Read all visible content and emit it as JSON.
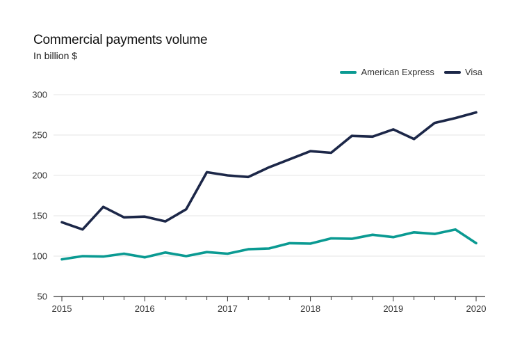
{
  "chart_data": {
    "type": "line",
    "title": "Commercial payments volume",
    "subtitle": "In billion $",
    "xlabel": "",
    "ylabel": "",
    "x_tick_labels": [
      "2015",
      "2016",
      "2017",
      "2018",
      "2019",
      "2020"
    ],
    "x_tick_values": [
      2015,
      2016,
      2017,
      2018,
      2019,
      2020
    ],
    "xlim": [
      2015,
      2020
    ],
    "y_ticks": [
      50,
      100,
      150,
      200,
      250,
      300
    ],
    "ylim": [
      50,
      300
    ],
    "grid": "horizontal",
    "legend_position": "top-right",
    "x": [
      2015.0,
      2015.25,
      2015.5,
      2015.75,
      2016.0,
      2016.25,
      2016.5,
      2016.75,
      2017.0,
      2017.25,
      2017.5,
      2017.75,
      2018.0,
      2018.25,
      2018.5,
      2018.75,
      2019.0,
      2019.25,
      2019.5,
      2019.75,
      2020.0
    ],
    "series": [
      {
        "name": "American Express",
        "color": "#0a9a92",
        "values": [
          96,
          100,
          99.5,
          103,
          98.5,
          104.5,
          100,
          105,
          103,
          108.5,
          109.5,
          116,
          115.5,
          122,
          121.5,
          126.5,
          123.5,
          129.5,
          127.5,
          133,
          116
        ]
      },
      {
        "name": "Visa",
        "color": "#1c2748",
        "values": [
          142,
          133,
          161,
          148,
          149,
          143,
          158,
          204,
          200,
          198,
          210,
          220,
          230,
          228,
          249,
          248,
          257,
          245,
          265,
          271,
          278
        ]
      }
    ]
  }
}
